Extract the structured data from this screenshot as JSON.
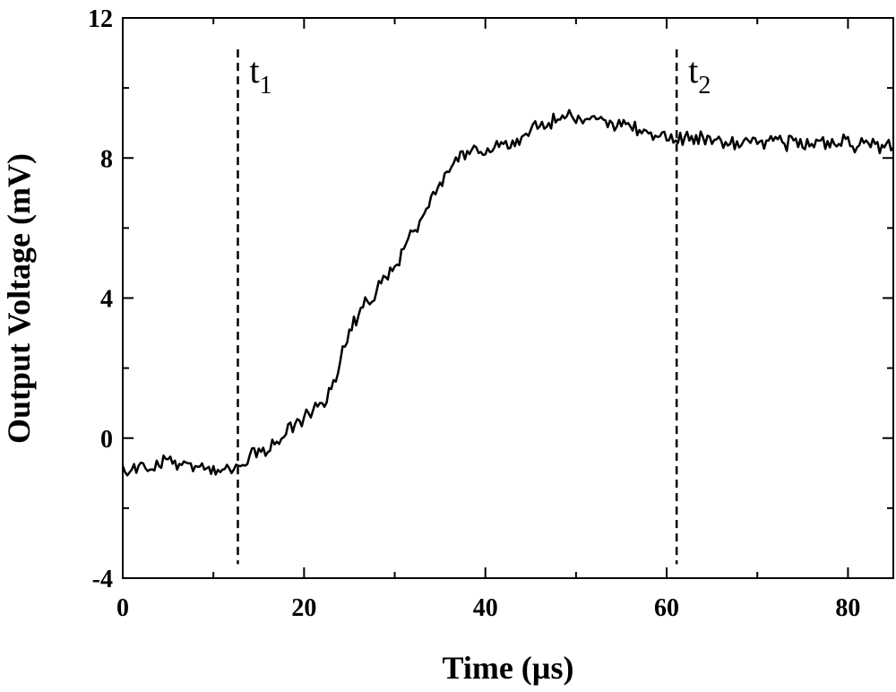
{
  "chart_data": {
    "type": "line",
    "xlabel": "Time (µs)",
    "ylabel": "Output Voltage (mV)",
    "xlim": [
      0,
      85
    ],
    "ylim": [
      -4,
      12
    ],
    "xticks": [
      "0",
      "20",
      "40",
      "60",
      "80"
    ],
    "yticks": [
      "-4",
      "0",
      "4",
      "8",
      "12"
    ],
    "grid": false,
    "legend": "none",
    "annotations": [
      {
        "label": "t",
        "subscript": "1",
        "x": 12.7,
        "style": "dashed-vertical"
      },
      {
        "label": "t",
        "subscript": "2",
        "x": 61.1,
        "style": "dashed-vertical"
      }
    ],
    "series": [
      {
        "x": [
          0,
          1,
          2,
          3,
          4,
          5,
          6,
          7,
          8,
          9,
          10,
          11,
          12,
          13,
          14,
          15,
          16,
          17,
          18,
          19,
          20,
          21,
          22,
          23,
          24,
          25,
          26,
          27,
          28,
          29,
          30,
          31,
          32,
          33,
          34,
          35,
          36,
          37,
          38,
          39,
          40,
          41,
          42,
          43,
          44,
          45,
          46,
          47,
          48,
          49,
          50,
          51,
          52,
          53,
          54,
          55,
          56,
          57,
          58,
          59,
          60,
          61,
          62,
          63,
          64,
          65,
          66,
          67,
          68,
          69,
          70,
          71,
          72,
          73,
          74,
          75,
          76,
          77,
          78,
          79,
          80,
          81,
          82,
          83,
          84,
          85
        ],
        "y": [
          -0.8,
          -0.9,
          -0.7,
          -0.9,
          -0.8,
          -0.6,
          -0.9,
          -0.7,
          -0.8,
          -0.9,
          -0.8,
          -0.9,
          -1.0,
          -0.8,
          -0.5,
          -0.3,
          -0.4,
          -0.1,
          0.1,
          0.4,
          0.6,
          0.8,
          1.0,
          1.4,
          2.2,
          3.1,
          3.5,
          3.9,
          4.2,
          4.6,
          4.9,
          5.4,
          5.9,
          6.3,
          6.9,
          7.3,
          7.6,
          7.9,
          8.2,
          8.3,
          8.1,
          8.3,
          8.4,
          8.5,
          8.6,
          8.8,
          8.9,
          9.0,
          9.1,
          9.2,
          9.0,
          9.1,
          9.2,
          9.1,
          9.0,
          8.9,
          8.9,
          8.8,
          8.7,
          8.6,
          8.5,
          8.5,
          8.6,
          8.4,
          8.6,
          8.4,
          8.5,
          8.4,
          8.3,
          8.5,
          8.4,
          8.5,
          8.6,
          8.4,
          8.5,
          8.3,
          8.4,
          8.5,
          8.3,
          8.4,
          8.6,
          8.3,
          8.5,
          8.4,
          8.3,
          8.3
        ]
      }
    ]
  }
}
